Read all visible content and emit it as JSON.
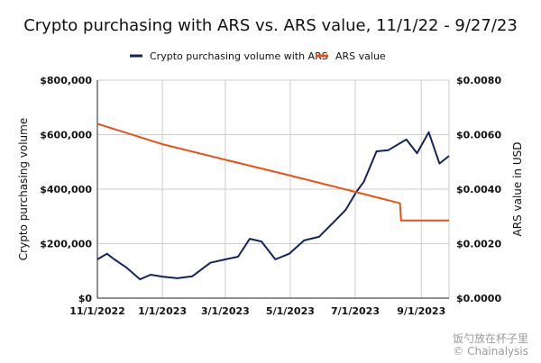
{
  "chart_data": {
    "type": "line",
    "title": "Crypto purchasing with ARS vs. ARS value, 11/1/22 - 9/27/23",
    "ylabel": "Crypto purchasing volume",
    "y2label": "ARS value in USD",
    "ylim": [
      0,
      800000
    ],
    "y2lim": [
      0,
      0.008
    ],
    "xlim": [
      "2022-11-01",
      "2023-09-27"
    ],
    "x_ticks": [
      "11/1/2022",
      "1/1/2023",
      "3/1/2023",
      "5/1/2023",
      "7/1/2023",
      "9/1/2023"
    ],
    "x_tick_dates": [
      "2022-11-01",
      "2023-01-01",
      "2023-03-01",
      "2023-05-01",
      "2023-07-01",
      "2023-09-01"
    ],
    "y_ticks": [
      "$0",
      "$200,000",
      "$400,000",
      "$600,000",
      "$800,000"
    ],
    "y_tick_values": [
      0,
      200000,
      400000,
      600000,
      800000
    ],
    "y2_ticks": [
      "$0.0000",
      "$0.0020",
      "$0.0040",
      "$0.0060",
      "$0.0080"
    ],
    "y2_tick_values": [
      0,
      0.002,
      0.004,
      0.006,
      0.008
    ],
    "grid": true,
    "legend_position": "top",
    "series": [
      {
        "name": "Crypto purchasing volume with ARS",
        "axis": "left",
        "color": "#14235c",
        "x": [
          "2022-11-01",
          "2022-11-10",
          "2022-11-17",
          "2022-11-28",
          "2022-12-11",
          "2022-12-21",
          "2023-01-01",
          "2023-01-15",
          "2023-01-29",
          "2023-02-15",
          "2023-03-01",
          "2023-03-13",
          "2023-03-24",
          "2023-04-04",
          "2023-04-17",
          "2023-04-30",
          "2023-05-14",
          "2023-05-28",
          "2023-06-08",
          "2023-06-22",
          "2023-07-02",
          "2023-07-09",
          "2023-07-21",
          "2023-08-01",
          "2023-08-18",
          "2023-08-28",
          "2023-09-08",
          "2023-09-18",
          "2023-09-27"
        ],
        "values": [
          142000,
          163000,
          142000,
          113000,
          69000,
          86000,
          79000,
          73000,
          80000,
          130000,
          142000,
          152000,
          218000,
          208000,
          142000,
          163000,
          212000,
          225000,
          268000,
          324000,
          390000,
          427000,
          539000,
          543000,
          582000,
          532000,
          609000,
          494000,
          522000
        ]
      },
      {
        "name": "ARS value",
        "axis": "right",
        "color": "#f04e12",
        "x": [
          "2022-11-01",
          "2023-01-01",
          "2023-03-01",
          "2023-05-01",
          "2023-07-01",
          "2023-08-12",
          "2023-08-13",
          "2023-09-27"
        ],
        "values": [
          0.0064,
          0.00565,
          0.00508,
          0.0045,
          0.0039,
          0.00348,
          0.00285,
          0.00285
        ]
      }
    ]
  },
  "watermark": {
    "line1": "饭勺放在杯子里",
    "line2": "© Chainalysis"
  }
}
